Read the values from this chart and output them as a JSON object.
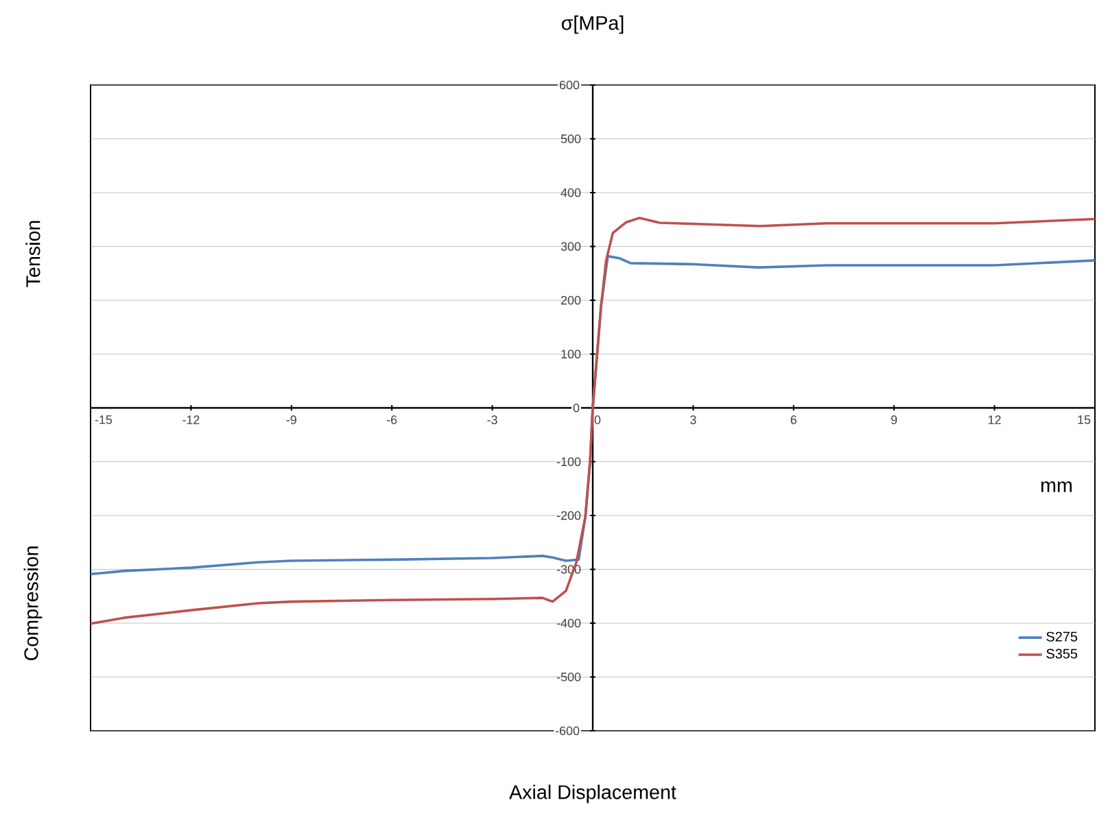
{
  "chart_data": {
    "type": "line",
    "ylabel": "σ[MPa]",
    "xlabel": "Axial Displacement",
    "annotations": [
      "Tension",
      "Compression",
      "mm"
    ],
    "xlim": [
      -15,
      15
    ],
    "ylim": [
      -600,
      600
    ],
    "xticks": [
      -15,
      -12,
      -9,
      -6,
      -3,
      0,
      3,
      6,
      9,
      12,
      15
    ],
    "yticks": [
      -600,
      -500,
      -400,
      -300,
      -200,
      -100,
      0,
      100,
      200,
      300,
      400,
      500,
      600
    ],
    "grid": "y",
    "legend": "bottom right",
    "marker": "none",
    "line_style": "solid",
    "series": [
      {
        "name": "S275",
        "color": "#4f81bd",
        "x": [
          -15,
          -14,
          -12,
          -10,
          -9,
          -6,
          -3,
          -1.5,
          -1.2,
          -0.8,
          -0.42,
          -0.22,
          -0.08,
          0,
          0.25,
          0.45,
          0.8,
          1.13,
          3,
          4.96,
          7,
          9,
          12,
          15
        ],
        "values": [
          -309,
          -303,
          -297,
          -287,
          -284,
          -282,
          -279,
          -275,
          -278,
          -284,
          -282,
          -202,
          -100,
          0,
          190,
          282,
          278,
          269,
          267,
          261,
          265,
          265,
          265,
          274
        ]
      },
      {
        "name": "S355",
        "color": "#c0504d",
        "x": [
          -15,
          -14,
          -12,
          -10,
          -9,
          -6,
          -3,
          -1.5,
          -1.2,
          -0.8,
          -0.49,
          -0.22,
          -0.08,
          0,
          0.25,
          0.4,
          0.6,
          1.0,
          1.4,
          2.0,
          5,
          7,
          12,
          15
        ],
        "values": [
          -401,
          -390,
          -376,
          -363,
          -360,
          -357,
          -355,
          -353,
          -360,
          -340,
          -287,
          -202,
          -100,
          0,
          190,
          274,
          325,
          345,
          353,
          344,
          338,
          343,
          343,
          351
        ]
      }
    ]
  }
}
